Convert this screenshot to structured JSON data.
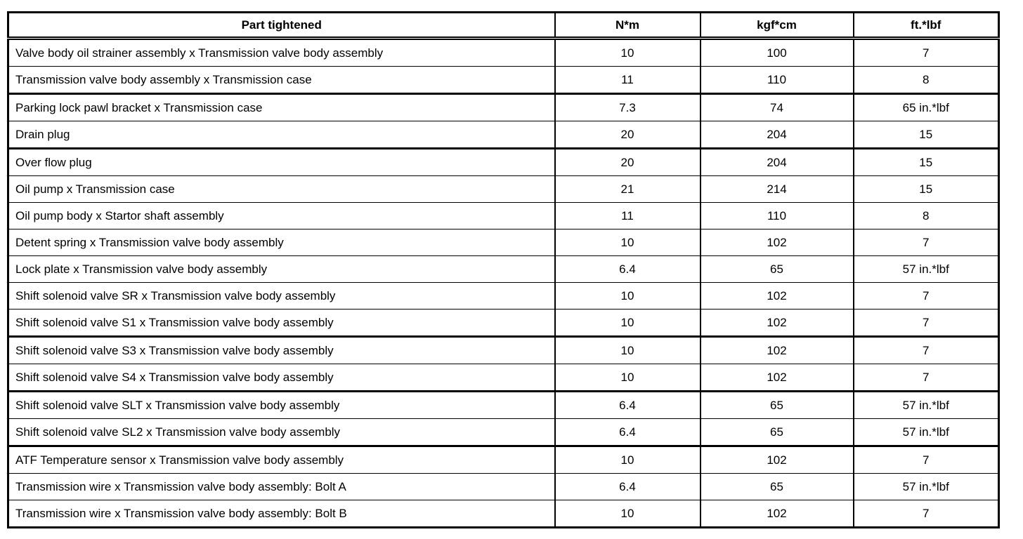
{
  "table": {
    "headers": {
      "part": "Part tightened",
      "nm": "N*m",
      "kgfcm": "kgf*cm",
      "ftlbf": "ft.*lbf"
    },
    "rows": [
      {
        "part": "Valve body oil strainer assembly x Transmission valve body assembly",
        "nm": "10",
        "kgfcm": "100",
        "ftlbf": "7",
        "group_end": false
      },
      {
        "part": "Transmission valve body assembly x Transmission case",
        "nm": "11",
        "kgfcm": "110",
        "ftlbf": "8",
        "group_end": true
      },
      {
        "part": "Parking lock pawl bracket x Transmission case",
        "nm": "7.3",
        "kgfcm": "74",
        "ftlbf": "65 in.*lbf",
        "group_end": false
      },
      {
        "part": "Drain plug",
        "nm": "20",
        "kgfcm": "204",
        "ftlbf": "15",
        "group_end": true
      },
      {
        "part": "Over flow plug",
        "nm": "20",
        "kgfcm": "204",
        "ftlbf": "15",
        "group_end": false
      },
      {
        "part": "Oil pump x Transmission case",
        "nm": "21",
        "kgfcm": "214",
        "ftlbf": "15",
        "group_end": false
      },
      {
        "part": "Oil pump body x Startor shaft assembly",
        "nm": "11",
        "kgfcm": "110",
        "ftlbf": "8",
        "group_end": false
      },
      {
        "part": "Detent spring x Transmission valve body assembly",
        "nm": "10",
        "kgfcm": "102",
        "ftlbf": "7",
        "group_end": false
      },
      {
        "part": "Lock plate x Transmission valve body assembly",
        "nm": "6.4",
        "kgfcm": "65",
        "ftlbf": "57 in.*lbf",
        "group_end": false
      },
      {
        "part": "Shift solenoid valve SR x Transmission valve body assembly",
        "nm": "10",
        "kgfcm": "102",
        "ftlbf": "7",
        "group_end": false
      },
      {
        "part": "Shift solenoid valve S1 x Transmission valve body assembly",
        "nm": "10",
        "kgfcm": "102",
        "ftlbf": "7",
        "group_end": true
      },
      {
        "part": "Shift solenoid valve S3 x Transmission valve body assembly",
        "nm": "10",
        "kgfcm": "102",
        "ftlbf": "7",
        "group_end": false
      },
      {
        "part": "Shift solenoid valve S4 x Transmission valve body assembly",
        "nm": "10",
        "kgfcm": "102",
        "ftlbf": "7",
        "group_end": true
      },
      {
        "part": "Shift solenoid valve SLT x Transmission valve body assembly",
        "nm": "6.4",
        "kgfcm": "65",
        "ftlbf": "57 in.*lbf",
        "group_end": false
      },
      {
        "part": "Shift solenoid valve SL2 x Transmission valve body assembly",
        "nm": "6.4",
        "kgfcm": "65",
        "ftlbf": "57 in.*lbf",
        "group_end": true
      },
      {
        "part": "ATF Temperature sensor x Transmission valve body assembly",
        "nm": "10",
        "kgfcm": "102",
        "ftlbf": "7",
        "group_end": false
      },
      {
        "part": "Transmission wire x Transmission valve body assembly: Bolt A",
        "nm": "6.4",
        "kgfcm": "65",
        "ftlbf": "57 in.*lbf",
        "group_end": false
      },
      {
        "part": "Transmission wire x Transmission valve body assembly: Bolt B",
        "nm": "10",
        "kgfcm": "102",
        "ftlbf": "7",
        "group_end": false
      }
    ]
  }
}
